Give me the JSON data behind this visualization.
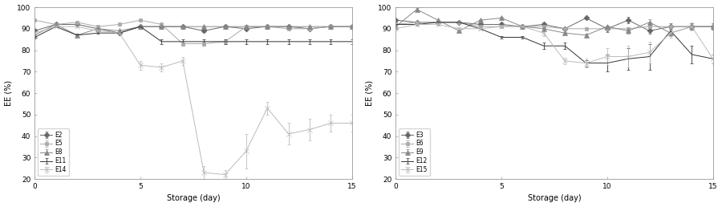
{
  "left": {
    "xlabel": "Storage (day)",
    "ylabel": "EE (%)",
    "xlim": [
      0,
      15
    ],
    "ylim": [
      20,
      100
    ],
    "yticks": [
      20,
      30,
      40,
      50,
      60,
      70,
      80,
      90,
      100
    ],
    "xticks": [
      0,
      5,
      10,
      15
    ],
    "series": {
      "E2": {
        "x": [
          0,
          1,
          2,
          3,
          4,
          5,
          6,
          7,
          8,
          9,
          10,
          11,
          12,
          13,
          14,
          15
        ],
        "y": [
          89,
          92,
          92,
          90,
          88,
          91,
          91,
          91,
          89,
          91,
          90,
          91,
          91,
          90,
          91,
          91
        ],
        "yerr": [
          0.5,
          0.5,
          0.5,
          0.5,
          0.5,
          0.5,
          0.5,
          0.5,
          0.5,
          0.5,
          0.5,
          0.5,
          0.5,
          0.5,
          0.5,
          0.5
        ],
        "marker": "D",
        "color": "#666666",
        "linestyle": "-"
      },
      "E5": {
        "x": [
          0,
          1,
          2,
          3,
          4,
          5,
          6,
          7,
          8,
          9,
          10,
          11,
          12,
          13,
          14,
          15
        ],
        "y": [
          94,
          92,
          93,
          91,
          92,
          94,
          92,
          83,
          83,
          84,
          91,
          91,
          90,
          90,
          91,
          91
        ],
        "yerr": [
          0.5,
          0.5,
          0.5,
          0.5,
          0.5,
          0.5,
          0.5,
          1.0,
          1.0,
          1.0,
          0.5,
          0.5,
          0.5,
          0.5,
          0.5,
          0.5
        ],
        "marker": "s",
        "color": "#aaaaaa",
        "linestyle": "-"
      },
      "E8": {
        "x": [
          0,
          1,
          2,
          3,
          4,
          5,
          6,
          7,
          8,
          9,
          10,
          11,
          12,
          13,
          14,
          15
        ],
        "y": [
          87,
          92,
          87,
          90,
          89,
          91,
          91,
          91,
          91,
          91,
          91,
          91,
          91,
          91,
          91,
          91
        ],
        "yerr": [
          0.5,
          0.5,
          0.5,
          0.5,
          0.5,
          0.5,
          0.5,
          0.5,
          0.5,
          0.5,
          0.5,
          0.5,
          0.5,
          0.5,
          0.5,
          0.5
        ],
        "marker": "^",
        "color": "#888888",
        "linestyle": "-"
      },
      "E11": {
        "x": [
          0,
          1,
          2,
          3,
          4,
          5,
          6,
          7,
          8,
          9,
          10,
          11,
          12,
          13,
          14,
          15
        ],
        "y": [
          86,
          91,
          87,
          88,
          88,
          91,
          84,
          84,
          84,
          84,
          84,
          84,
          84,
          84,
          84,
          84
        ],
        "yerr": [
          0.5,
          0.5,
          0.5,
          0.5,
          0.5,
          0.5,
          1.0,
          1.0,
          1.0,
          1.0,
          1.0,
          1.0,
          1.0,
          1.0,
          1.0,
          1.0
        ],
        "marker": "none",
        "color": "#333333",
        "linestyle": "-"
      },
      "E14": {
        "x": [
          0,
          1,
          2,
          3,
          4,
          5,
          6,
          7,
          8,
          9,
          10,
          11,
          12,
          13,
          14,
          15
        ],
        "y": [
          88,
          91,
          91,
          89,
          88,
          73,
          72,
          75,
          23,
          22,
          33,
          53,
          41,
          43,
          46,
          46
        ],
        "yerr": [
          0.5,
          0.5,
          0.5,
          0.5,
          0.5,
          2,
          2,
          2,
          3,
          2,
          8,
          3,
          5,
          5,
          4,
          4
        ],
        "marker": "x",
        "color": "#bbbbbb",
        "linestyle": "-"
      }
    },
    "legend_order": [
      "E2",
      "E5",
      "E8",
      "E11",
      "E14"
    ]
  },
  "right": {
    "xlabel": "Storage (day)",
    "ylabel": "EE (%)",
    "xlim": [
      0,
      15
    ],
    "ylim": [
      20,
      100
    ],
    "yticks": [
      20,
      30,
      40,
      50,
      60,
      70,
      80,
      90,
      100
    ],
    "xticks": [
      0,
      5,
      10,
      15
    ],
    "series": {
      "E3": {
        "x": [
          0,
          1,
          2,
          3,
          4,
          5,
          6,
          7,
          8,
          9,
          10,
          11,
          12,
          13,
          14,
          15
        ],
        "y": [
          94,
          93,
          93,
          93,
          92,
          92,
          91,
          92,
          90,
          95,
          90,
          94,
          89,
          91,
          91,
          91
        ],
        "yerr": [
          0.5,
          0.5,
          0.5,
          0.5,
          0.5,
          0.5,
          0.5,
          0.5,
          0.5,
          0.5,
          1.5,
          1.5,
          1.5,
          1.5,
          1.5,
          1.5
        ],
        "marker": "D",
        "color": "#666666",
        "linestyle": "-"
      },
      "E6": {
        "x": [
          0,
          1,
          2,
          3,
          4,
          5,
          6,
          7,
          8,
          9,
          10,
          11,
          12,
          13,
          14,
          15
        ],
        "y": [
          92,
          93,
          93,
          93,
          91,
          91,
          91,
          91,
          90,
          90,
          90,
          90,
          91,
          91,
          91,
          91
        ],
        "yerr": [
          0.5,
          0.5,
          0.5,
          0.5,
          0.5,
          0.5,
          0.5,
          0.5,
          0.5,
          0.5,
          0.5,
          0.5,
          0.5,
          0.5,
          0.5,
          0.5
        ],
        "marker": "s",
        "color": "#aaaaaa",
        "linestyle": "-"
      },
      "E9": {
        "x": [
          0,
          1,
          2,
          3,
          4,
          5,
          6,
          7,
          8,
          9,
          10,
          11,
          12,
          13,
          14,
          15
        ],
        "y": [
          91,
          99,
          94,
          89,
          94,
          95,
          91,
          90,
          88,
          87,
          91,
          89,
          93,
          88,
          91,
          91
        ],
        "yerr": [
          0.5,
          0.5,
          0.5,
          0.5,
          0.5,
          0.5,
          0.5,
          0.5,
          0.5,
          0.5,
          0.5,
          1.5,
          1.5,
          1.5,
          1.5,
          1.5
        ],
        "marker": "^",
        "color": "#888888",
        "linestyle": "-"
      },
      "E12": {
        "x": [
          0,
          1,
          2,
          3,
          4,
          5,
          6,
          7,
          8,
          9,
          10,
          11,
          12,
          13,
          14,
          15
        ],
        "y": [
          92,
          92,
          93,
          93,
          90,
          86,
          86,
          82,
          82,
          74,
          74,
          76,
          77,
          89,
          78,
          76
        ],
        "yerr": [
          0.5,
          0.5,
          0.5,
          0.5,
          0.5,
          0.5,
          0.5,
          1.5,
          1.5,
          1.5,
          4,
          5,
          6,
          2,
          4,
          2
        ],
        "marker": "none",
        "color": "#333333",
        "linestyle": "-"
      },
      "E15": {
        "x": [
          0,
          1,
          2,
          3,
          4,
          5,
          6,
          7,
          8,
          9,
          10,
          11,
          12,
          13,
          14,
          15
        ],
        "y": [
          90,
          92,
          92,
          90,
          90,
          91,
          91,
          88,
          75,
          74,
          77,
          77,
          79,
          88,
          91,
          76
        ],
        "yerr": [
          0.5,
          0.5,
          0.5,
          0.5,
          0.5,
          0.5,
          0.5,
          1.5,
          1.5,
          2,
          4,
          5,
          5,
          2,
          2,
          2
        ],
        "marker": "x",
        "color": "#bbbbbb",
        "linestyle": "-"
      }
    },
    "legend_order": [
      "E3",
      "E6",
      "E9",
      "E12",
      "E15"
    ]
  }
}
